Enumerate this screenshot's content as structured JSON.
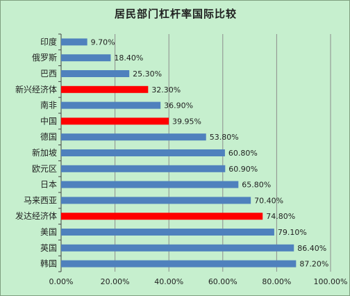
{
  "chart_data": {
    "type": "bar",
    "orientation": "horizontal",
    "title": "居民部门杠杆率国际比较",
    "xlabel": "",
    "ylabel": "",
    "xlim": [
      0,
      100
    ],
    "grid": true,
    "categories": [
      "印度",
      "俄罗斯",
      "巴西",
      "新兴经济体",
      "南非",
      "中国",
      "德国",
      "新加坡",
      "欧元区",
      "日本",
      "马来西亚",
      "发达经济体",
      "美国",
      "英国",
      "韩国"
    ],
    "values": [
      9.7,
      18.4,
      25.3,
      32.3,
      36.9,
      39.95,
      53.8,
      60.8,
      60.9,
      65.8,
      70.4,
      74.8,
      79.1,
      86.4,
      87.2
    ],
    "value_labels": [
      "9.70%",
      "18.40%",
      "25.30%",
      "32.30%",
      "36.90%",
      "39.95%",
      "53.80%",
      "60.80%",
      "60.90%",
      "65.80%",
      "70.40%",
      "74.80%",
      "79.10%",
      "86.40%",
      "87.20%"
    ],
    "highlight": [
      "新兴经济体",
      "中国",
      "发达经济体"
    ],
    "x_ticks": [
      "0.00%",
      "20.00%",
      "40.00%",
      "60.00%",
      "80.00%",
      "100.00%"
    ],
    "colors": {
      "bar": "#4f81bd",
      "highlight": "#ff0000",
      "background": "#c6efce",
      "grid": "#8c8c8c"
    }
  }
}
